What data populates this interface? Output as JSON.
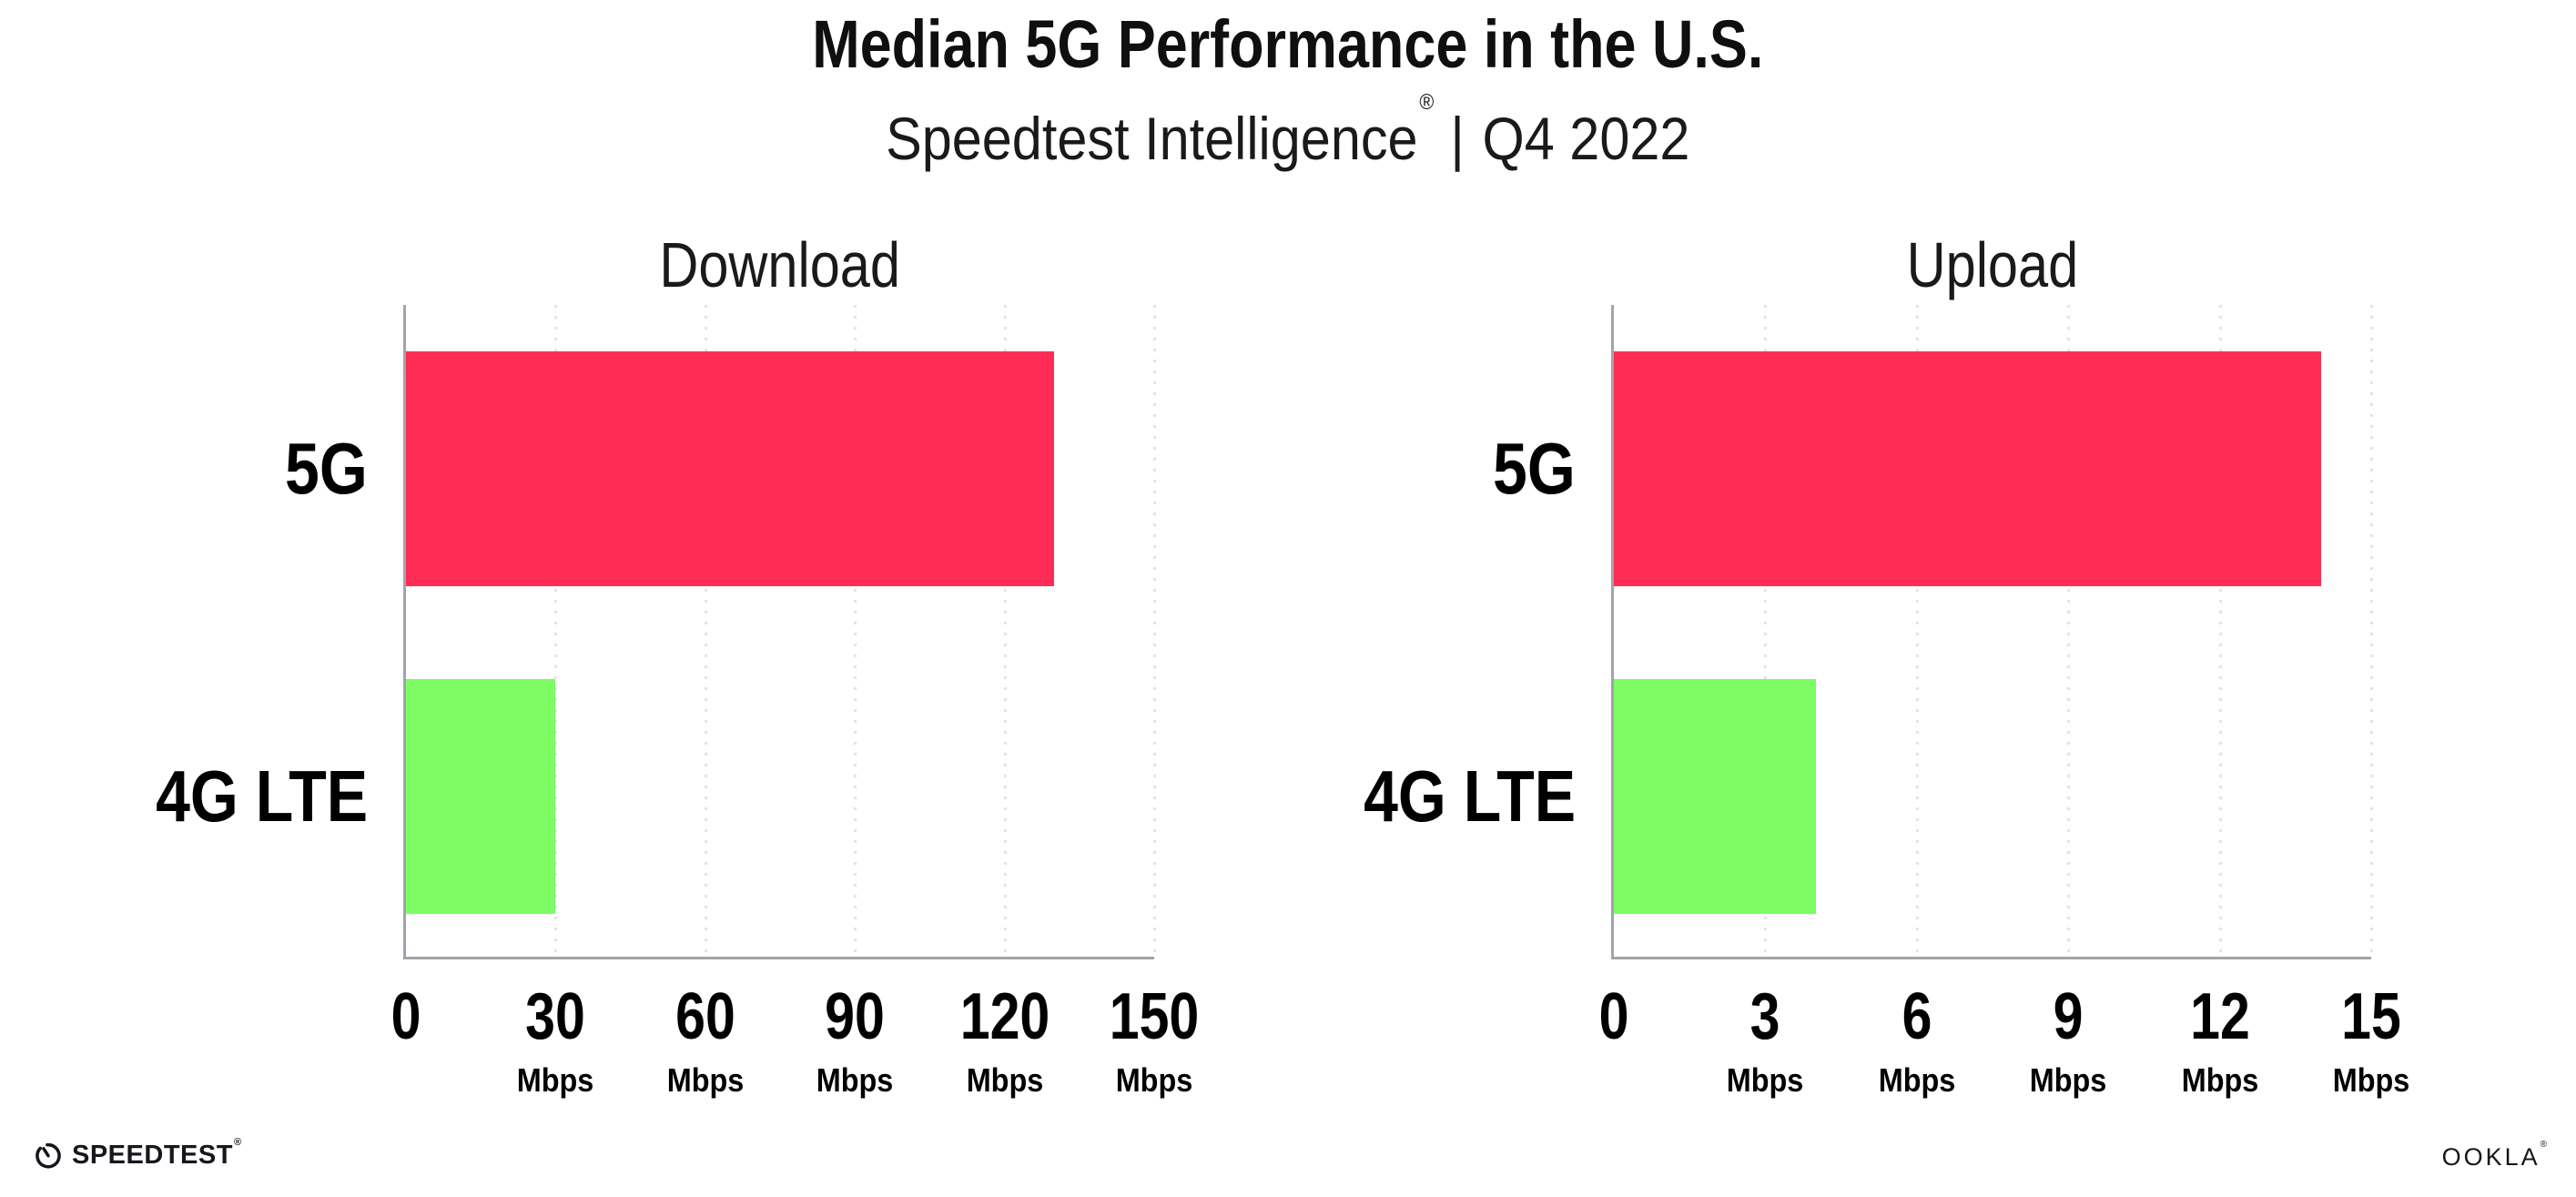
{
  "header": {
    "title": "Median 5G Performance in the U.S.",
    "subtitle": {
      "brand": "Speedtest Intelligence",
      "mark": "®",
      "separator": "|",
      "period": "Q4 2022"
    }
  },
  "chart_data": [
    {
      "type": "bar",
      "orientation": "horizontal",
      "title": "Download",
      "categories": [
        "5G",
        "4G LTE"
      ],
      "values": [
        130,
        30
      ],
      "unit": "Mbps",
      "xlim": [
        0,
        150
      ],
      "xticks": [
        0,
        30,
        60,
        90,
        120,
        150
      ],
      "bar_colors": [
        "#ff2d55",
        "#7dfc64"
      ],
      "grid": "dotted-vertical-gridlines",
      "legend": "none"
    },
    {
      "type": "bar",
      "orientation": "horizontal",
      "title": "Upload",
      "categories": [
        "5G",
        "4G LTE"
      ],
      "values": [
        14,
        4
      ],
      "unit": "Mbps",
      "xlim": [
        0,
        15
      ],
      "xticks": [
        0,
        3,
        6,
        9,
        12,
        15
      ],
      "bar_colors": [
        "#ff2d55",
        "#7dfc64"
      ],
      "grid": "dotted-vertical-gridlines",
      "legend": "none"
    }
  ],
  "footer": {
    "speedtest": {
      "icon": "speedometer-gauge-icon",
      "label": "SPEEDTEST",
      "mark": "®"
    },
    "ookla": {
      "label": "OOKLA",
      "mark": "®"
    }
  },
  "colors": {
    "bar_5g": "#ff2d55",
    "bar_4g_lte": "#7dfc64",
    "axis": "#a3a3aa",
    "gridline": "#e3e3eb",
    "text": "#141414"
  }
}
